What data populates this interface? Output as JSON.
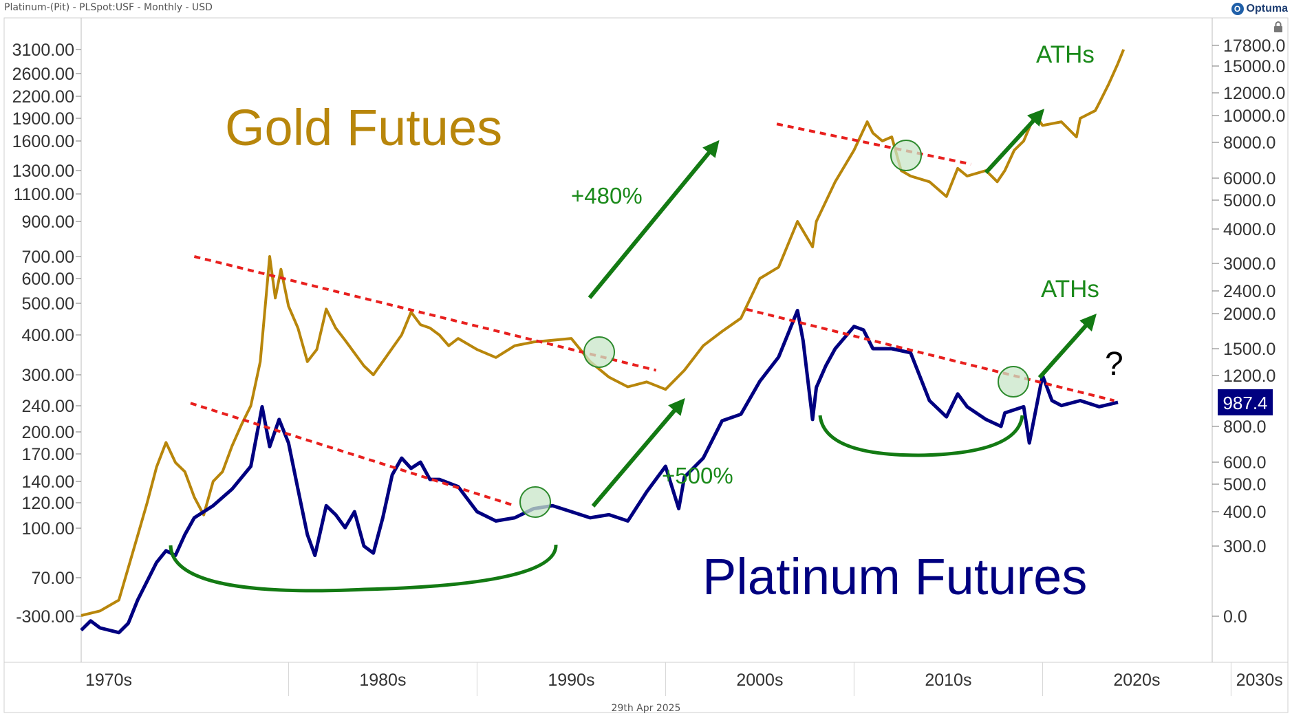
{
  "header": {
    "title": "Platinum-(Pit) - PLSpot:USF - Monthly - USD",
    "logo_text": "Optuma",
    "date_label": "29th Apr 2025"
  },
  "chart_data": {
    "type": "line",
    "title": "",
    "x_labels": [
      "1970s",
      "1980s",
      "1990s",
      "2000s",
      "2010s",
      "2020s",
      "2030s"
    ],
    "x_range": [
      1970,
      2030
    ],
    "left_axis_ticks": [
      "3100.00",
      "2600.00",
      "2200.00",
      "1900.00",
      "1600.00",
      "1300.00",
      "1100.00",
      "900.00",
      "700.00",
      "600.00",
      "500.00",
      "400.00",
      "300.00",
      "240.00",
      "200.00",
      "170.00",
      "140.00",
      "120.00",
      "100.00",
      "70.00",
      "-300.00"
    ],
    "right_axis_ticks": [
      "17800.0",
      "15000.0",
      "12000.0",
      "10000.0",
      "8000.0",
      "6000.0",
      "5000.0",
      "4000.0",
      "3000.0",
      "2400.0",
      "2000.0",
      "1500.0",
      "1200.0",
      "800.0",
      "600.0",
      "500.0",
      "400.0",
      "300.0",
      "0.0"
    ],
    "last_value_label": "987.4",
    "scale": "log",
    "grid": false,
    "colors": {
      "gold": "#b8860b",
      "platinum": "#000080",
      "trendline": "#e8201e",
      "arrows": "#137a13",
      "annotation_text": "#1b8a1b",
      "circle_fill": "#c8e6c8",
      "circle_stroke": "#2e8b2e"
    },
    "series": [
      {
        "name": "Gold Futues",
        "color": "#b8860b",
        "axis": "left",
        "points": [
          [
            1970.0,
            37
          ],
          [
            1971.0,
            40
          ],
          [
            1972.0,
            48
          ],
          [
            1973.0,
            95
          ],
          [
            1973.5,
            120
          ],
          [
            1974.0,
            155
          ],
          [
            1974.5,
            185
          ],
          [
            1975.0,
            160
          ],
          [
            1975.5,
            150
          ],
          [
            1976.0,
            125
          ],
          [
            1976.5,
            110
          ],
          [
            1977.0,
            140
          ],
          [
            1977.5,
            150
          ],
          [
            1978.0,
            180
          ],
          [
            1978.5,
            210
          ],
          [
            1979.0,
            240
          ],
          [
            1979.5,
            330
          ],
          [
            1980.0,
            700
          ],
          [
            1980.3,
            520
          ],
          [
            1980.6,
            640
          ],
          [
            1981.0,
            490
          ],
          [
            1981.5,
            420
          ],
          [
            1982.0,
            330
          ],
          [
            1982.5,
            360
          ],
          [
            1983.0,
            480
          ],
          [
            1983.5,
            420
          ],
          [
            1984.0,
            385
          ],
          [
            1985.0,
            320
          ],
          [
            1985.5,
            300
          ],
          [
            1986.0,
            330
          ],
          [
            1987.0,
            400
          ],
          [
            1987.5,
            470
          ],
          [
            1988.0,
            430
          ],
          [
            1988.5,
            420
          ],
          [
            1989.0,
            400
          ],
          [
            1989.5,
            370
          ],
          [
            1990.0,
            390
          ],
          [
            1991.0,
            360
          ],
          [
            1992.0,
            340
          ],
          [
            1993.0,
            370
          ],
          [
            1994.0,
            380
          ],
          [
            1995.0,
            385
          ],
          [
            1996.0,
            390
          ],
          [
            1997.0,
            330
          ],
          [
            1998.0,
            295
          ],
          [
            1999.0,
            275
          ],
          [
            2000.0,
            285
          ],
          [
            2001.0,
            270
          ],
          [
            2002.0,
            310
          ],
          [
            2003.0,
            370
          ],
          [
            2004.0,
            410
          ],
          [
            2005.0,
            450
          ],
          [
            2006.0,
            600
          ],
          [
            2007.0,
            650
          ],
          [
            2008.0,
            900
          ],
          [
            2008.8,
            750
          ],
          [
            2009.0,
            900
          ],
          [
            2010.0,
            1200
          ],
          [
            2011.0,
            1500
          ],
          [
            2011.7,
            1850
          ],
          [
            2012.0,
            1700
          ],
          [
            2012.5,
            1600
          ],
          [
            2013.0,
            1650
          ],
          [
            2013.5,
            1300
          ],
          [
            2014.0,
            1250
          ],
          [
            2015.0,
            1200
          ],
          [
            2015.9,
            1080
          ],
          [
            2016.5,
            1320
          ],
          [
            2017.0,
            1250
          ],
          [
            2018.0,
            1300
          ],
          [
            2018.6,
            1200
          ],
          [
            2019.0,
            1300
          ],
          [
            2019.5,
            1500
          ],
          [
            2020.0,
            1600
          ],
          [
            2020.6,
            1950
          ],
          [
            2021.0,
            1800
          ],
          [
            2022.0,
            1850
          ],
          [
            2022.8,
            1650
          ],
          [
            2023.0,
            1900
          ],
          [
            2023.8,
            2000
          ],
          [
            2024.0,
            2100
          ],
          [
            2024.5,
            2400
          ],
          [
            2025.0,
            2800
          ],
          [
            2025.3,
            3300
          ]
        ]
      },
      {
        "name": "Platinum Futures",
        "color": "#000080",
        "axis": "right",
        "points": [
          [
            1970.0,
            -60
          ],
          [
            1970.5,
            -20
          ],
          [
            1971.0,
            -50
          ],
          [
            1972.0,
            -70
          ],
          [
            1972.5,
            -30
          ],
          [
            1973.0,
            70
          ],
          [
            1973.5,
            150
          ],
          [
            1974.0,
            230
          ],
          [
            1974.5,
            280
          ],
          [
            1975.0,
            260
          ],
          [
            1975.5,
            330
          ],
          [
            1976.0,
            380
          ],
          [
            1977.0,
            420
          ],
          [
            1978.0,
            480
          ],
          [
            1979.0,
            580
          ],
          [
            1979.6,
            950
          ],
          [
            1980.0,
            680
          ],
          [
            1980.5,
            850
          ],
          [
            1981.0,
            700
          ],
          [
            1981.5,
            480
          ],
          [
            1982.0,
            330
          ],
          [
            1982.4,
            260
          ],
          [
            1983.0,
            420
          ],
          [
            1983.5,
            390
          ],
          [
            1984.0,
            350
          ],
          [
            1984.5,
            400
          ],
          [
            1985.0,
            300
          ],
          [
            1985.5,
            270
          ],
          [
            1986.0,
            380
          ],
          [
            1986.5,
            540
          ],
          [
            1987.0,
            620
          ],
          [
            1987.5,
            570
          ],
          [
            1988.0,
            600
          ],
          [
            1988.5,
            520
          ],
          [
            1989.0,
            520
          ],
          [
            1990.0,
            490
          ],
          [
            1991.0,
            400
          ],
          [
            1992.0,
            370
          ],
          [
            1993.0,
            380
          ],
          [
            1994.0,
            410
          ],
          [
            1995.0,
            420
          ],
          [
            1996.0,
            400
          ],
          [
            1997.0,
            380
          ],
          [
            1998.0,
            390
          ],
          [
            1999.0,
            370
          ],
          [
            2000.0,
            470
          ],
          [
            2001.0,
            580
          ],
          [
            2001.7,
            410
          ],
          [
            2002.0,
            530
          ],
          [
            2003.0,
            620
          ],
          [
            2004.0,
            840
          ],
          [
            2005.0,
            890
          ],
          [
            2006.0,
            1150
          ],
          [
            2007.0,
            1400
          ],
          [
            2008.0,
            2050
          ],
          [
            2008.3,
            1600
          ],
          [
            2008.8,
            850
          ],
          [
            2009.0,
            1100
          ],
          [
            2009.5,
            1300
          ],
          [
            2010.0,
            1500
          ],
          [
            2011.0,
            1800
          ],
          [
            2011.5,
            1750
          ],
          [
            2012.0,
            1500
          ],
          [
            2013.0,
            1500
          ],
          [
            2014.0,
            1450
          ],
          [
            2015.0,
            1000
          ],
          [
            2015.9,
            870
          ],
          [
            2016.5,
            1050
          ],
          [
            2017.0,
            950
          ],
          [
            2018.0,
            850
          ],
          [
            2018.8,
            800
          ],
          [
            2019.0,
            900
          ],
          [
            2020.0,
            950
          ],
          [
            2020.3,
            700
          ],
          [
            2021.0,
            1200
          ],
          [
            2021.5,
            1000
          ],
          [
            2022.0,
            960
          ],
          [
            2023.0,
            1000
          ],
          [
            2024.0,
            950
          ],
          [
            2025.0,
            987.4
          ]
        ]
      }
    ],
    "annotations": {
      "gold_label": "Gold Futues",
      "platinum_label": "Platinum Futures",
      "gold_move": "+480%",
      "platinum_move": "+500%",
      "ath_gold": "ATHs",
      "ath_platinum": "ATHs",
      "question": "?"
    }
  }
}
